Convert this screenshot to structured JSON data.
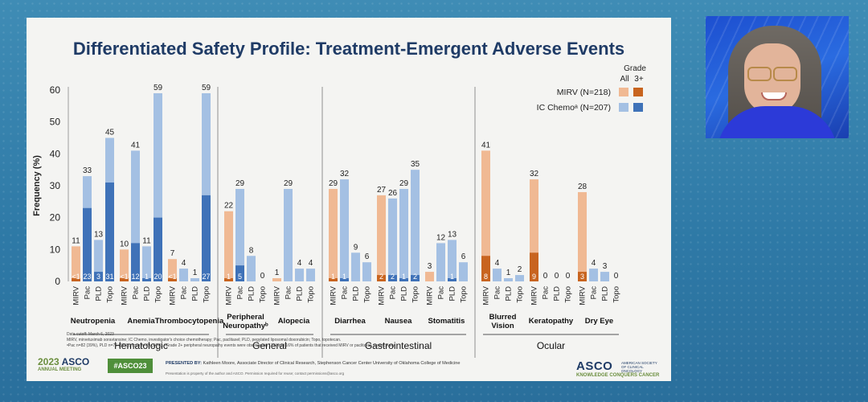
{
  "slide": {
    "title": "Differentiated Safety Profile: Treatment-Emergent Adverse Events"
  },
  "colors": {
    "mirv_all": "#f0b993",
    "mirv_3plus": "#c8641f",
    "ic_all": "#a4c0e3",
    "ic_3plus": "#3f72b8",
    "title": "#1f3b66"
  },
  "chart_data": {
    "type": "bar",
    "ylabel": "Frequency (%)",
    "ylim": [
      0,
      60
    ],
    "yticks": [
      0,
      10,
      20,
      30,
      40,
      50,
      60
    ],
    "legend": {
      "header_grade": "Grade",
      "header_all": "All",
      "header_3plus": "3+",
      "series": [
        "MIRV (N=218)",
        "IC Chemoᵃ (N=207)"
      ],
      "placement": "top-right"
    },
    "groups": [
      {
        "name": "Hematologic",
        "events": [
          {
            "name": "Neutropenia",
            "bars": [
              {
                "arm": "MIRV",
                "all": 11,
                "g3": 1,
                "g3_label": "<1"
              },
              {
                "arm": "Pac",
                "all": 33,
                "g3": 23,
                "g3_label": "23"
              },
              {
                "arm": "PLD",
                "all": 13,
                "g3": 3,
                "g3_label": "3"
              },
              {
                "arm": "Topo",
                "all": 45,
                "g3": 31,
                "g3_label": "31"
              }
            ]
          },
          {
            "name": "Anemia",
            "bars": [
              {
                "arm": "MIRV",
                "all": 10,
                "g3": 1,
                "g3_label": "<1"
              },
              {
                "arm": "Pac",
                "all": 41,
                "g3": 12,
                "g3_label": "12"
              },
              {
                "arm": "PLD",
                "all": 11,
                "g3": 1,
                "g3_label": "1"
              },
              {
                "arm": "Topo",
                "all": 59,
                "g3": 20,
                "g3_label": "20"
              }
            ]
          },
          {
            "name": "Thrombocytopenia",
            "bars": [
              {
                "arm": "MIRV",
                "all": 7,
                "g3": 1,
                "g3_label": "<1"
              },
              {
                "arm": "Pac",
                "all": 4,
                "g3": 0,
                "g3_label": ""
              },
              {
                "arm": "PLD",
                "all": 1,
                "g3": 0,
                "g3_label": ""
              },
              {
                "arm": "Topo",
                "all": 59,
                "g3": 27,
                "g3_label": "27"
              }
            ]
          }
        ]
      },
      {
        "name": "General",
        "events": [
          {
            "name": "Peripheral Neuropathyᵇ",
            "bars": [
              {
                "arm": "MIRV",
                "all": 22,
                "g3": 1,
                "g3_label": "1"
              },
              {
                "arm": "Pac",
                "all": 29,
                "g3": 5,
                "g3_label": "5"
              },
              {
                "arm": "PLD",
                "all": 8,
                "g3": 0,
                "g3_label": ""
              },
              {
                "arm": "Topo",
                "all": 0,
                "g3": 0,
                "g3_label": ""
              }
            ]
          },
          {
            "name": "Alopecia",
            "bars": [
              {
                "arm": "MIRV",
                "all": 1,
                "g3": 0,
                "g3_label": ""
              },
              {
                "arm": "Pac",
                "all": 29,
                "g3": 0,
                "g3_label": ""
              },
              {
                "arm": "PLD",
                "all": 4,
                "g3": 0,
                "g3_label": ""
              },
              {
                "arm": "Topo",
                "all": 4,
                "g3": 0,
                "g3_label": ""
              }
            ]
          }
        ]
      },
      {
        "name": "Gastrointestinal",
        "events": [
          {
            "name": "Diarrhea",
            "bars": [
              {
                "arm": "MIRV",
                "all": 29,
                "g3": 1,
                "g3_label": "1"
              },
              {
                "arm": "Pac",
                "all": 32,
                "g3": 1,
                "g3_label": "1"
              },
              {
                "arm": "PLD",
                "all": 9,
                "g3": 0,
                "g3_label": ""
              },
              {
                "arm": "Topo",
                "all": 6,
                "g3": 0,
                "g3_label": ""
              }
            ]
          },
          {
            "name": "Nausea",
            "bars": [
              {
                "arm": "MIRV",
                "all": 27,
                "g3": 2,
                "g3_label": "2"
              },
              {
                "arm": "Pac",
                "all": 26,
                "g3": 2,
                "g3_label": "2"
              },
              {
                "arm": "PLD",
                "all": 29,
                "g3": 1,
                "g3_label": "1"
              },
              {
                "arm": "Topo",
                "all": 35,
                "g3": 2,
                "g3_label": "2"
              }
            ]
          },
          {
            "name": "Stomatitis",
            "bars": [
              {
                "arm": "MIRV",
                "all": 3,
                "g3": 0,
                "g3_label": ""
              },
              {
                "arm": "Pac",
                "all": 12,
                "g3": 0,
                "g3_label": ""
              },
              {
                "arm": "PLD",
                "all": 13,
                "g3": 1,
                "g3_label": "1"
              },
              {
                "arm": "Topo",
                "all": 6,
                "g3": 0,
                "g3_label": ""
              }
            ]
          }
        ]
      },
      {
        "name": "Ocular",
        "events": [
          {
            "name": "Blurred Vision",
            "bars": [
              {
                "arm": "MIRV",
                "all": 41,
                "g3": 8,
                "g3_label": "8"
              },
              {
                "arm": "Pac",
                "all": 4,
                "g3": 0,
                "g3_label": ""
              },
              {
                "arm": "PLD",
                "all": 1,
                "g3": 0,
                "g3_label": ""
              },
              {
                "arm": "Topo",
                "all": 2,
                "g3": 0,
                "g3_label": ""
              }
            ]
          },
          {
            "name": "Keratopathy",
            "bars": [
              {
                "arm": "MIRV",
                "all": 32,
                "g3": 9,
                "g3_label": "9"
              },
              {
                "arm": "Pac",
                "all": 0,
                "g3": 0,
                "g3_label": ""
              },
              {
                "arm": "PLD",
                "all": 0,
                "g3": 0,
                "g3_label": ""
              },
              {
                "arm": "Topo",
                "all": 0,
                "g3": 0,
                "g3_label": ""
              }
            ]
          },
          {
            "name": "Dry Eye",
            "bars": [
              {
                "arm": "MIRV",
                "all": 28,
                "g3": 3,
                "g3_label": "3"
              },
              {
                "arm": "Pac",
                "all": 4,
                "g3": 0,
                "g3_label": ""
              },
              {
                "arm": "PLD",
                "all": 3,
                "g3": 0,
                "g3_label": ""
              },
              {
                "arm": "Topo",
                "all": 0,
                "g3": 0,
                "g3_label": ""
              }
            ]
          }
        ]
      }
    ]
  },
  "footer": {
    "cutoff": "Data cutoff: March 6, 2023",
    "abbrev": "MIRV, mirvetuximab soravtansine; IC Chemo, investigator's choice chemotherapy; Pac, paclitaxel; PLD, pegylated liposomal doxorubicin; Topo, topotecan.",
    "notes": "ᵃPac n=82 (39%), PLD n=76 (37%), Topo n=49 (24%). ᵇGrade 2+ peripheral neuropathy events were observed in 12% and 16% of patients that received MIRV or paclitaxel, respectively.",
    "meeting_year": "2023",
    "meeting_brand": "ASCO",
    "meeting_label": "ANNUAL MEETING",
    "hashtag": "#ASCO23",
    "presented_prefix": "PRESENTED BY:",
    "presenter": "Kathleen Moore, Associate Director of Clinical Research, Stephenson Cancer Center University of Oklahoma College of Medicine",
    "property": "Presentation is property of the author and ASCO. Permission required for reuse; contact permissions@asco.org",
    "asco_logo": "ASCO",
    "asco_society": "AMERICAN SOCIETY OF CLINICAL ONCOLOGY",
    "asco_tagline": "KNOWLEDGE CONQUERS CANCER"
  }
}
